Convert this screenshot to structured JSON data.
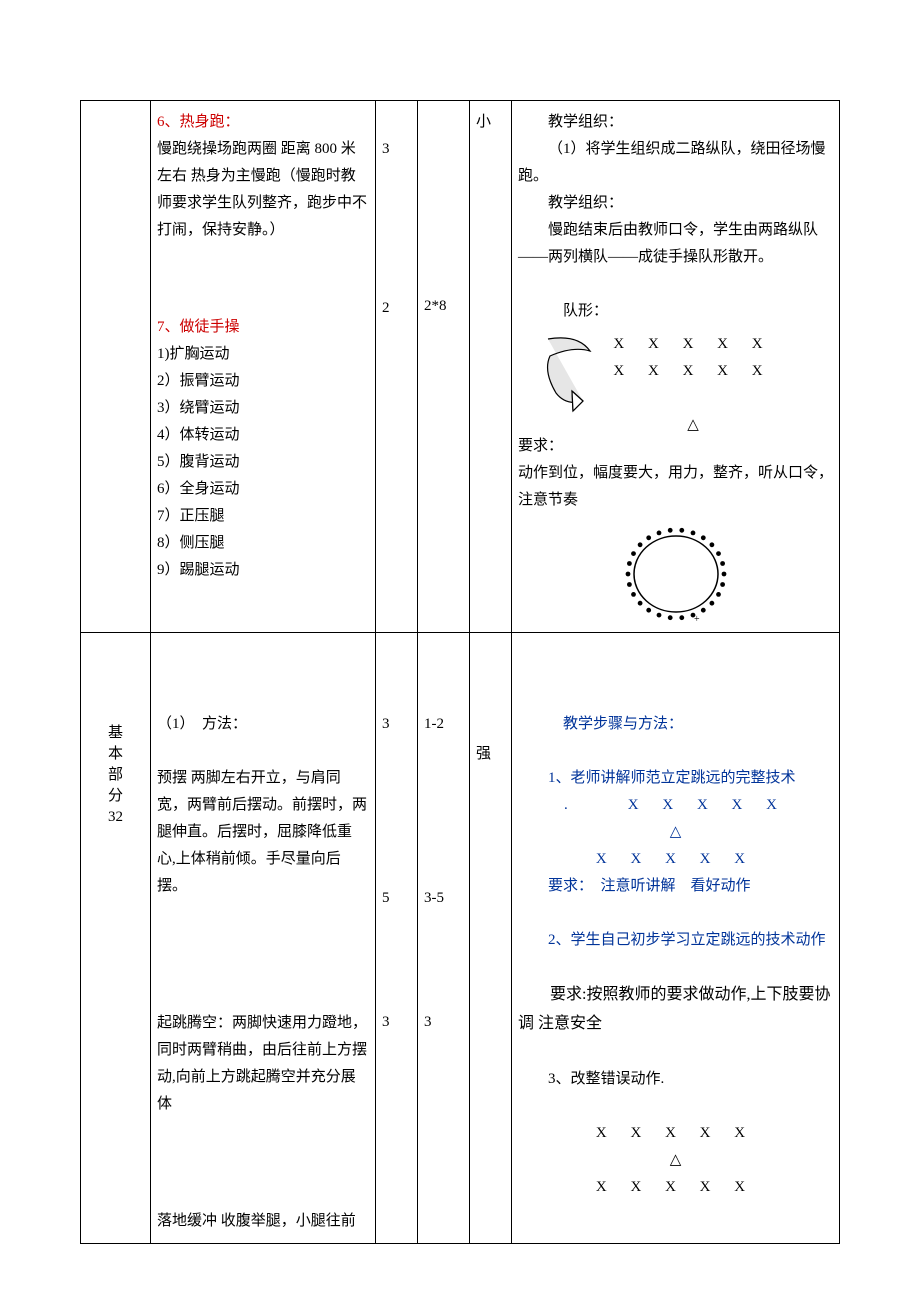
{
  "row1": {
    "content": {
      "h6_title": "6、热身跑：",
      "h6_body": "慢跑绕操场跑两圈 距离 800 米左右 热身为主慢跑（慢跑时教师要求学生队列整齐，跑步中不打闹，保持安静。）",
      "h7_title": "7、做徒手操",
      "h7_items": [
        "1)扩胸运动",
        "2）振臂运动",
        "3）绕臂运动",
        "4）体转运动",
        "5）腹背运动",
        "6）全身运动",
        "7）正压腿",
        "8）侧压腿",
        "9）踢腿运动"
      ]
    },
    "n1_a": "3",
    "n1_b": "2",
    "n2_b": "2*8",
    "intensity": "小",
    "org": {
      "h_org1": "教学组织：",
      "org1_body": "（1）将学生组织成二路纵队，绕田径场慢跑。",
      "h_org2": "教学组织：",
      "org2_body": "慢跑结束后由教师口令，学生由两路纵队——两列横队——成徒手操队形散开。",
      "formation_label": "队形：",
      "row_x1": "X  X  X  X  X",
      "row_x2": "X  X  X  X  X",
      "tri": "△",
      "req_label": "要求：",
      "req_body": "动作到位，幅度要大，用力，整齐，听从口令，注意节奏"
    }
  },
  "row2": {
    "section_label": "基本部分",
    "section_num": "32",
    "content": {
      "m_title": "（1）　方法：",
      "p1": "预摆 两脚左右开立，与肩同宽，两臂前后摆动。前摆时，两腿伸直。后摆时，屈膝降低重心,上体稍前倾。手尽量向后摆。",
      "p2": "起跳腾空：两脚快速用力蹬地，同时两臂稍曲，由后往前上方摆动,向前上方跳起腾空并充分展体",
      "p3": "落地缓冲 收腹举腿，小腿往前"
    },
    "n1_a": "3",
    "n1_b": "5",
    "n1_c": "3",
    "n2_a": "1-2",
    "n2_b": "3-5",
    "n2_c": "3",
    "intensity": "强",
    "org": {
      "h_steps": "教学步骤与方法：",
      "s1": "1、老师讲解师范立定跳远的完整技术",
      "row_x1": ".　　X  X  X  X  X",
      "tri": "△",
      "row_x2": "X  X  X  X  X",
      "req1": "要求：　注意听讲解　看好动作",
      "s2": "2、学生自己初步学习立定跳远的技术动作",
      "req2": "要求:按照教师的要求做动作,上下肢要协调 注意安全",
      "s3": "3、改整错误动作.",
      "row_x3": "X  X  X  X  X",
      "tri2": "△",
      "row_x4": "X  X  X  X  X"
    }
  }
}
